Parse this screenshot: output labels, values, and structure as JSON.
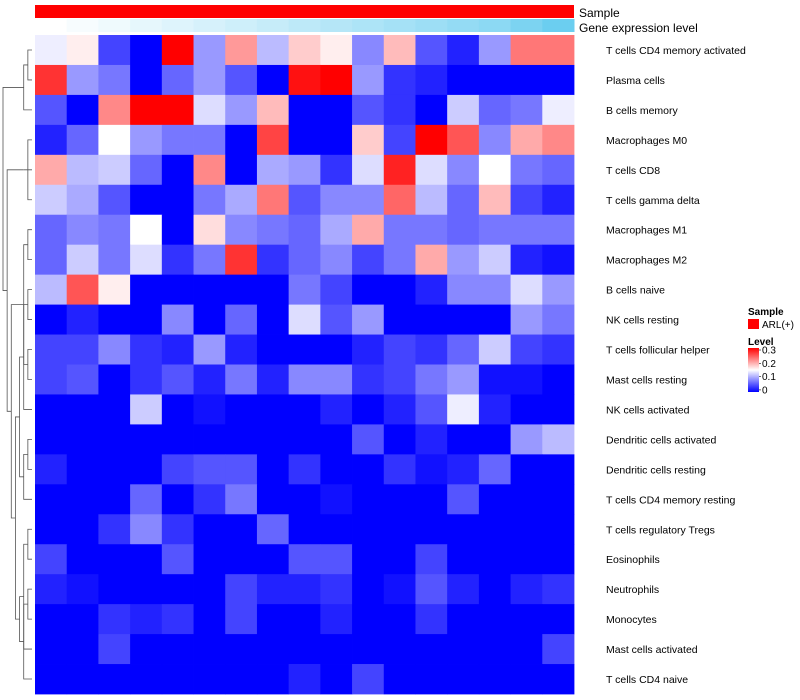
{
  "chart_data": {
    "type": "heatmap",
    "annotation_tracks": [
      {
        "name": "Sample",
        "color": "#ff0000"
      },
      {
        "name": "Gene expression level",
        "gradient": [
          "#ffffff",
          "#5bc8ee"
        ]
      }
    ],
    "rows": [
      "T cells CD4 memory activated",
      "Plasma cells",
      "B cells memory",
      "Macrophages M0",
      "T cells CD8",
      "T cells gamma delta",
      "Macrophages M1",
      "Macrophages M2",
      "B cells naive",
      "NK cells resting",
      "T cells follicular helper",
      "Mast cells resting",
      "NK cells activated",
      "Dendritic cells activated",
      "Dendritic cells resting",
      "T cells CD4 memory resting",
      "T cells regulatory  Tregs",
      "Eosinophils",
      "Neutrophils",
      "Monocytes",
      "Mast cells activated",
      "T cells CD4 naive"
    ],
    "values": [
      [
        0.14,
        0.16,
        0.04,
        0.0,
        0.3,
        0.09,
        0.21,
        0.11,
        0.18,
        0.16,
        0.08,
        0.19,
        0.05,
        0.02,
        0.09,
        0.23,
        0.23
      ],
      [
        0.27,
        0.09,
        0.07,
        0.0,
        0.06,
        0.09,
        0.05,
        0.0,
        0.29,
        0.3,
        0.09,
        0.03,
        0.02,
        0.0,
        0.0,
        0.0,
        0.0
      ],
      [
        0.05,
        0.0,
        0.22,
        0.3,
        0.3,
        0.13,
        0.09,
        0.19,
        0.0,
        0.0,
        0.05,
        0.03,
        0.0,
        0.12,
        0.06,
        0.07,
        0.14
      ],
      [
        0.02,
        0.06,
        0.15,
        0.09,
        0.07,
        0.07,
        0.0,
        0.26,
        0.0,
        0.0,
        0.18,
        0.04,
        0.3,
        0.25,
        0.08,
        0.2,
        0.22
      ],
      [
        0.2,
        0.11,
        0.12,
        0.06,
        0.0,
        0.22,
        0.0,
        0.1,
        0.09,
        0.03,
        0.13,
        0.28,
        0.13,
        0.08,
        0.15,
        0.07,
        0.06
      ],
      [
        0.12,
        0.1,
        0.05,
        0.0,
        0.0,
        0.07,
        0.1,
        0.23,
        0.05,
        0.08,
        0.08,
        0.24,
        0.11,
        0.06,
        0.19,
        0.04,
        0.02
      ],
      [
        0.06,
        0.08,
        0.07,
        0.15,
        0.0,
        0.17,
        0.08,
        0.07,
        0.06,
        0.1,
        0.2,
        0.07,
        0.07,
        0.06,
        0.07,
        0.07,
        0.07
      ],
      [
        0.06,
        0.12,
        0.07,
        0.13,
        0.03,
        0.07,
        0.27,
        0.03,
        0.06,
        0.08,
        0.04,
        0.07,
        0.2,
        0.09,
        0.12,
        0.02,
        0.01
      ],
      [
        0.11,
        0.25,
        0.16,
        0.0,
        0.0,
        0.0,
        0.0,
        0.0,
        0.07,
        0.04,
        0.0,
        0.0,
        0.02,
        0.08,
        0.08,
        0.13,
        0.09
      ],
      [
        0.0,
        0.02,
        0.0,
        0.0,
        0.08,
        0.0,
        0.06,
        0.0,
        0.13,
        0.05,
        0.09,
        0.0,
        0.0,
        0.0,
        0.0,
        0.09,
        0.07
      ],
      [
        0.04,
        0.04,
        0.08,
        0.03,
        0.02,
        0.09,
        0.02,
        0.0,
        0.0,
        0.0,
        0.02,
        0.04,
        0.03,
        0.06,
        0.12,
        0.04,
        0.03
      ],
      [
        0.04,
        0.05,
        0.0,
        0.03,
        0.05,
        0.02,
        0.07,
        0.02,
        0.08,
        0.08,
        0.03,
        0.04,
        0.07,
        0.09,
        0.01,
        0.01,
        0.0
      ],
      [
        0.0,
        0.0,
        0.0,
        0.12,
        0.0,
        0.01,
        0.0,
        0.0,
        0.0,
        0.02,
        0.0,
        0.02,
        0.05,
        0.14,
        0.02,
        0.0,
        0.0
      ],
      [
        0.0,
        0.0,
        0.0,
        0.0,
        0.0,
        0.0,
        0.0,
        0.0,
        0.0,
        0.0,
        0.05,
        0.0,
        0.02,
        0.0,
        0.0,
        0.09,
        0.11
      ],
      [
        0.02,
        0.0,
        0.0,
        0.0,
        0.04,
        0.05,
        0.05,
        0.0,
        0.03,
        0.0,
        0.0,
        0.03,
        0.01,
        0.02,
        0.06,
        0.0,
        0.0
      ],
      [
        0.0,
        0.0,
        0.0,
        0.06,
        0.0,
        0.03,
        0.07,
        0.0,
        0.0,
        0.01,
        0.0,
        0.0,
        0.0,
        0.05,
        0.0,
        0.0,
        0.0
      ],
      [
        0.0,
        0.0,
        0.03,
        0.08,
        0.03,
        0.0,
        0.0,
        0.06,
        0.0,
        0.0,
        0.0,
        0.0,
        0.0,
        0.0,
        0.0,
        0.0,
        0.0
      ],
      [
        0.04,
        0.0,
        0.0,
        0.0,
        0.05,
        0.0,
        0.0,
        0.0,
        0.05,
        0.05,
        0.0,
        0.0,
        0.04,
        0.0,
        0.0,
        0.0,
        0.0
      ],
      [
        0.02,
        0.01,
        0.0,
        0.0,
        0.0,
        0.0,
        0.04,
        0.02,
        0.02,
        0.03,
        0.0,
        0.01,
        0.05,
        0.02,
        0.0,
        0.02,
        0.03
      ],
      [
        0.0,
        0.0,
        0.03,
        0.02,
        0.03,
        0.0,
        0.04,
        0.0,
        0.0,
        0.02,
        0.0,
        0.0,
        0.03,
        0.0,
        0.0,
        0.0,
        0.0
      ],
      [
        0.0,
        0.0,
        0.04,
        0.0,
        0.0,
        0.0,
        0.0,
        0.0,
        0.0,
        0.0,
        0.0,
        0.0,
        0.0,
        0.0,
        0.0,
        0.0,
        0.04
      ],
      [
        0.0,
        0.0,
        0.0,
        0.0,
        0.0,
        0.0,
        0.0,
        0.0,
        0.02,
        0.0,
        0.04,
        0.0,
        0.0,
        0.0,
        0.0,
        0.0,
        0.0
      ]
    ],
    "expression_level": [
      0.0,
      0.05,
      0.1,
      0.15,
      0.2,
      0.25,
      0.3,
      0.35,
      0.4,
      0.45,
      0.5,
      0.55,
      0.6,
      0.65,
      0.7,
      0.8,
      0.9
    ],
    "dendrogram_merges": [
      [
        0,
        1
      ],
      [
        3,
        5
      ],
      [
        22,
        2
      ],
      [
        23,
        4
      ],
      [
        6,
        7
      ],
      [
        8,
        9
      ],
      [
        10,
        11
      ],
      [
        13,
        14
      ],
      [
        29,
        15
      ],
      [
        16,
        17
      ],
      [
        18,
        19
      ],
      [
        31,
        20
      ],
      [
        32,
        21
      ],
      [
        27,
        12
      ],
      [
        34,
        33
      ],
      [
        35,
        30
      ],
      [
        26,
        28
      ],
      [
        36,
        37
      ],
      [
        39,
        38
      ],
      [
        40,
        25
      ],
      [
        24,
        41
      ]
    ],
    "legend": {
      "sample_title": "Sample",
      "sample_label": "ARL(+)",
      "sample_color": "#ff0000",
      "level_title": "Level",
      "level_ticks": [
        "0.3",
        "0.2",
        "0.1",
        "0"
      ],
      "level_range": [
        0,
        0.3
      ],
      "colors": [
        "#0000ff",
        "#ffffff",
        "#ff0000"
      ]
    }
  }
}
